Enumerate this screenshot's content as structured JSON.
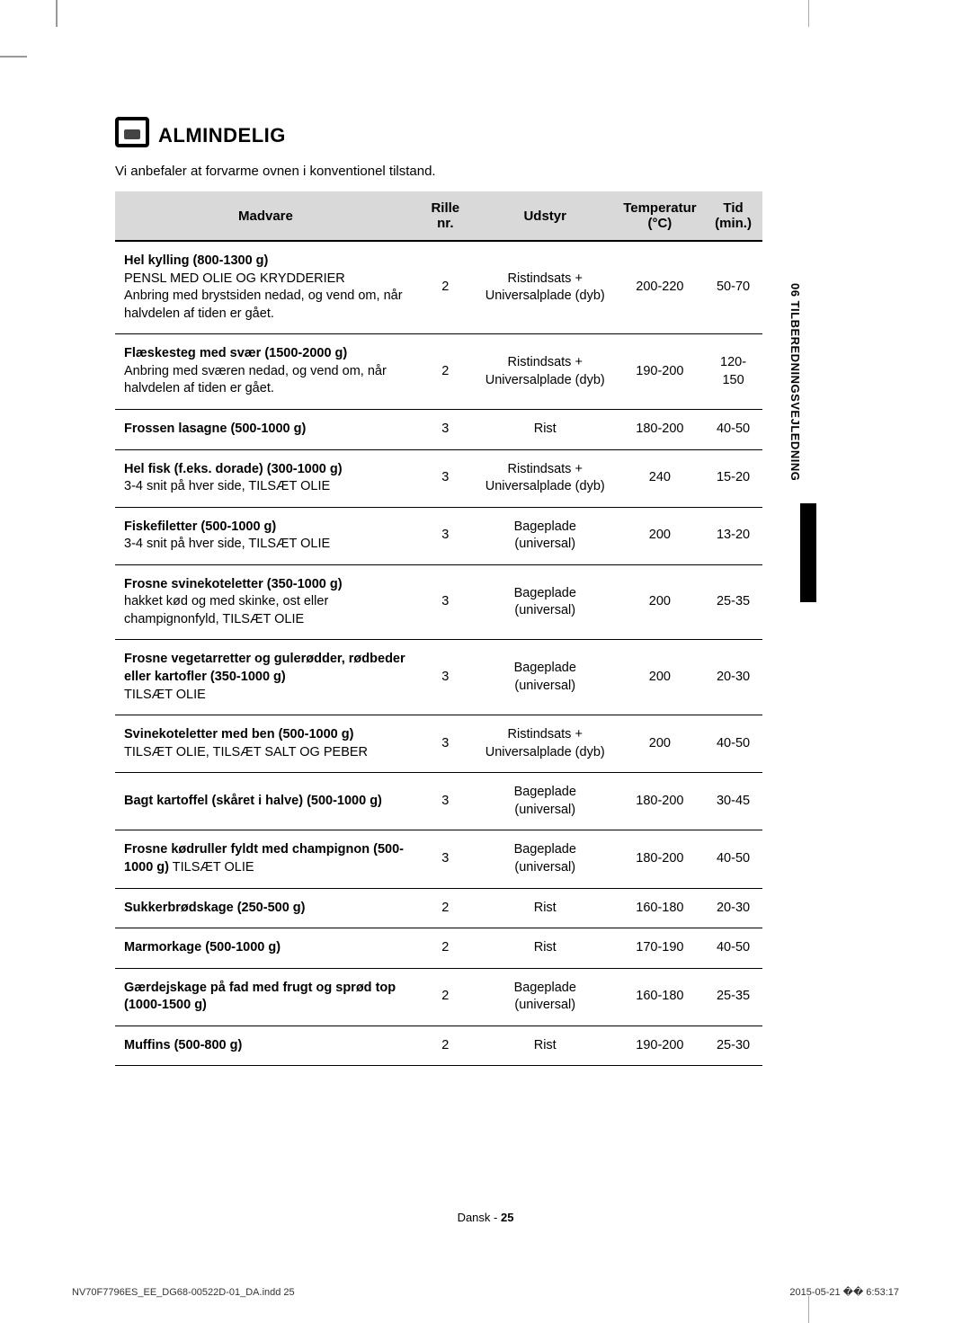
{
  "heading": "ALMINDELIG",
  "intro": "Vi anbefaler at forvarme ovnen i konventionel tilstand.",
  "cols": {
    "madvare": "Madvare",
    "rille": "Rille nr.",
    "udstyr": "Udstyr",
    "temp": "Temperatur (°C)",
    "tid": "Tid (min.)"
  },
  "rows": [
    {
      "madB": "Hel kylling (800-1300 g)",
      "mad2B": "PENSL MED OLIE OG KRYDDERIER",
      "mad3": "Anbring med brystsiden nedad, og vend om, når halvdelen af tiden er gået.",
      "rille": "2",
      "udstyr": "Ristindsats + Universalplade (dyb)",
      "temp": "200-220",
      "tid": "50-70"
    },
    {
      "madB": "Flæskesteg med svær (1500-2000 g)",
      "mad3": "Anbring med sværen nedad, og vend om, når halvdelen af tiden er gået.",
      "rille": "2",
      "udstyr": "Ristindsats + Universalplade (dyb)",
      "temp": "190-200",
      "tid": "120-150"
    },
    {
      "madB": "Frossen lasagne (500-1000 g)",
      "rille": "3",
      "udstyr": "Rist",
      "temp": "180-200",
      "tid": "40-50"
    },
    {
      "madB": "Hel fisk (f.eks. dorade) (300-1000 g)",
      "mad3": "3-4 snit på hver side, TILSÆT OLIE",
      "rille": "3",
      "udstyr": "Ristindsats + Universalplade (dyb)",
      "temp": "240",
      "tid": "15-20"
    },
    {
      "madB": "Fiskefiletter (500-1000 g)",
      "mad3": "3-4 snit på hver side, TILSÆT OLIE",
      "rille": "3",
      "udstyr": "Bageplade (universal)",
      "temp": "200",
      "tid": "13-20"
    },
    {
      "madB": "Frosne svinekoteletter (350-1000 g)",
      "mad3": "hakket kød og med skinke, ost eller champignonfyld, TILSÆT OLIE",
      "rille": "3",
      "udstyr": "Bageplade (universal)",
      "temp": "200",
      "tid": "25-35"
    },
    {
      "madB": "Frosne vegetarretter og gulerødder, rødbeder eller kartofler (350-1000 g)",
      "mad3": "TILSÆT OLIE",
      "rille": "3",
      "udstyr": "Bageplade (universal)",
      "temp": "200",
      "tid": "20-30"
    },
    {
      "madB": "Svinekoteletter med ben (500-1000 g)",
      "mad3": "TILSÆT OLIE, TILSÆT SALT OG PEBER",
      "rille": "3",
      "udstyr": "Ristindsats + Universalplade (dyb)",
      "temp": "200",
      "tid": "40-50"
    },
    {
      "madB": "Bagt kartoffel (skåret i halve) (500-1000 g)",
      "rille": "3",
      "udstyr": "Bageplade (universal)",
      "temp": "180-200",
      "tid": "30-45"
    },
    {
      "madB": "Frosne kødruller fyldt med champignon (500-1000 g)",
      "madAfter": " TILSÆT OLIE",
      "rille": "3",
      "udstyr": "Bageplade (universal)",
      "temp": "180-200",
      "tid": "40-50"
    },
    {
      "madB": "Sukkerbrødskage (250-500 g)",
      "rille": "2",
      "udstyr": "Rist",
      "temp": "160-180",
      "tid": "20-30"
    },
    {
      "madB": "Marmorkage (500-1000 g)",
      "rille": "2",
      "udstyr": "Rist",
      "temp": "170-190",
      "tid": "40-50"
    },
    {
      "madB": "Gærdejskage på fad med frugt og sprød top (1000-1500 g)",
      "rille": "2",
      "udstyr": "Bageplade (universal)",
      "temp": "160-180",
      "tid": "25-35"
    },
    {
      "madB": "Muffins (500-800 g)",
      "rille": "2",
      "udstyr": "Rist",
      "temp": "190-200",
      "tid": "25-30"
    }
  ],
  "sidebar": "06  TILBEREDNINGSVEJLEDNING",
  "footer": {
    "center_label": "Dansk - ",
    "center_page": "25",
    "left": "NV70F7796ES_EE_DG68-00522D-01_DA.indd   25",
    "right": "2015-05-21   �� 6:53:17"
  }
}
